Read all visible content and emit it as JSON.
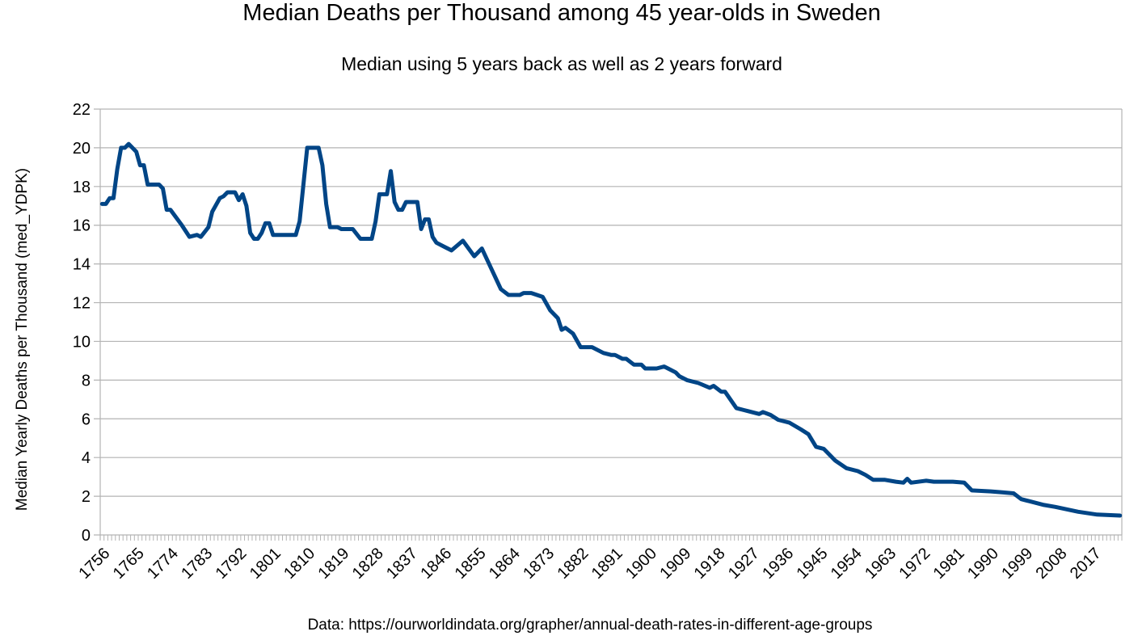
{
  "chart_data": {
    "type": "line",
    "title": "Median Deaths per Thousand among 45 year-olds in Sweden",
    "subtitle": "Median using 5 years back as well as 2 years forward",
    "xlabel": "",
    "ylabel": "Median Yearly Deaths per Thousand (med_YDPK)",
    "source": "Data: https://ourworldindata.org/grapher/annual-death-rates-in-different-age-groups",
    "xlim": [
      1756,
      2024
    ],
    "ylim": [
      0,
      22
    ],
    "yticks": [
      0,
      2,
      4,
      6,
      8,
      10,
      12,
      14,
      16,
      18,
      20,
      22
    ],
    "xtick_labels": [
      "1756",
      "1765",
      "1774",
      "1783",
      "1792",
      "1801",
      "1810",
      "1819",
      "1828",
      "1837",
      "1846",
      "1855",
      "1864",
      "1873",
      "1882",
      "1891",
      "1900",
      "1909",
      "1918",
      "1927",
      "1936",
      "1945",
      "1954",
      "1963",
      "1972",
      "1981",
      "1990",
      "1999",
      "2008",
      "2017"
    ],
    "grid": true,
    "legend": "none",
    "line_color": "#004586",
    "series": [
      {
        "name": "med_YDPK",
        "points": [
          [
            1756,
            17.1
          ],
          [
            1757,
            17.1
          ],
          [
            1758,
            17.4
          ],
          [
            1759,
            17.4
          ],
          [
            1760,
            18.9
          ],
          [
            1761,
            20.0
          ],
          [
            1762,
            20.0
          ],
          [
            1763,
            20.2
          ],
          [
            1765,
            19.8
          ],
          [
            1766,
            19.1
          ],
          [
            1767,
            19.1
          ],
          [
            1768,
            18.1
          ],
          [
            1771,
            18.1
          ],
          [
            1772,
            17.9
          ],
          [
            1773,
            16.8
          ],
          [
            1774,
            16.8
          ],
          [
            1777,
            16.0
          ],
          [
            1779,
            15.4
          ],
          [
            1781,
            15.5
          ],
          [
            1782,
            15.4
          ],
          [
            1784,
            15.9
          ],
          [
            1785,
            16.7
          ],
          [
            1787,
            17.4
          ],
          [
            1788,
            17.5
          ],
          [
            1789,
            17.7
          ],
          [
            1791,
            17.7
          ],
          [
            1792,
            17.3
          ],
          [
            1793,
            17.6
          ],
          [
            1794,
            17.0
          ],
          [
            1795,
            15.6
          ],
          [
            1796,
            15.3
          ],
          [
            1797,
            15.3
          ],
          [
            1798,
            15.6
          ],
          [
            1799,
            16.1
          ],
          [
            1800,
            16.1
          ],
          [
            1801,
            15.5
          ],
          [
            1803,
            15.5
          ],
          [
            1807,
            15.5
          ],
          [
            1808,
            16.2
          ],
          [
            1810,
            20.0
          ],
          [
            1813,
            20.0
          ],
          [
            1814,
            19.1
          ],
          [
            1815,
            17.1
          ],
          [
            1816,
            15.9
          ],
          [
            1818,
            15.9
          ],
          [
            1819,
            15.8
          ],
          [
            1822,
            15.8
          ],
          [
            1824,
            15.3
          ],
          [
            1827,
            15.3
          ],
          [
            1828,
            16.2
          ],
          [
            1829,
            17.6
          ],
          [
            1831,
            17.6
          ],
          [
            1832,
            18.8
          ],
          [
            1833,
            17.2
          ],
          [
            1834,
            16.8
          ],
          [
            1835,
            16.8
          ],
          [
            1836,
            17.2
          ],
          [
            1839,
            17.2
          ],
          [
            1840,
            15.8
          ],
          [
            1841,
            16.3
          ],
          [
            1842,
            16.3
          ],
          [
            1843,
            15.4
          ],
          [
            1844,
            15.1
          ],
          [
            1846,
            14.9
          ],
          [
            1848,
            14.7
          ],
          [
            1851,
            15.2
          ],
          [
            1854,
            14.4
          ],
          [
            1856,
            14.8
          ],
          [
            1861,
            12.7
          ],
          [
            1863,
            12.4
          ],
          [
            1866,
            12.4
          ],
          [
            1867,
            12.5
          ],
          [
            1869,
            12.5
          ],
          [
            1872,
            12.3
          ],
          [
            1874,
            11.6
          ],
          [
            1876,
            11.2
          ],
          [
            1877,
            10.6
          ],
          [
            1878,
            10.7
          ],
          [
            1880,
            10.4
          ],
          [
            1882,
            9.7
          ],
          [
            1885,
            9.7
          ],
          [
            1888,
            9.4
          ],
          [
            1890,
            9.3
          ],
          [
            1891,
            9.3
          ],
          [
            1893,
            9.1
          ],
          [
            1894,
            9.1
          ],
          [
            1896,
            8.8
          ],
          [
            1898,
            8.8
          ],
          [
            1899,
            8.6
          ],
          [
            1902,
            8.6
          ],
          [
            1904,
            8.7
          ],
          [
            1905,
            8.6
          ],
          [
            1907,
            8.4
          ],
          [
            1908,
            8.2
          ],
          [
            1910,
            8.0
          ],
          [
            1913,
            7.85
          ],
          [
            1916,
            7.6
          ],
          [
            1917,
            7.7
          ],
          [
            1919,
            7.4
          ],
          [
            1920,
            7.4
          ],
          [
            1923,
            6.55
          ],
          [
            1925,
            6.45
          ],
          [
            1926,
            6.4
          ],
          [
            1929,
            6.25
          ],
          [
            1930,
            6.35
          ],
          [
            1932,
            6.2
          ],
          [
            1934,
            5.95
          ],
          [
            1937,
            5.8
          ],
          [
            1940,
            5.45
          ],
          [
            1942,
            5.2
          ],
          [
            1944,
            4.55
          ],
          [
            1946,
            4.45
          ],
          [
            1949,
            3.85
          ],
          [
            1952,
            3.45
          ],
          [
            1955,
            3.3
          ],
          [
            1957,
            3.1
          ],
          [
            1959,
            2.85
          ],
          [
            1962,
            2.85
          ],
          [
            1965,
            2.75
          ],
          [
            1967,
            2.7
          ],
          [
            1968,
            2.9
          ],
          [
            1969,
            2.7
          ],
          [
            1973,
            2.8
          ],
          [
            1975,
            2.75
          ],
          [
            1980,
            2.75
          ],
          [
            1983,
            2.7
          ],
          [
            1985,
            2.3
          ],
          [
            1990,
            2.25
          ],
          [
            1993,
            2.2
          ],
          [
            1996,
            2.15
          ],
          [
            1998,
            1.85
          ],
          [
            2000,
            1.75
          ],
          [
            2004,
            1.55
          ],
          [
            2007,
            1.45
          ],
          [
            2013,
            1.2
          ],
          [
            2018,
            1.05
          ],
          [
            2024,
            1.0
          ]
        ]
      }
    ]
  }
}
